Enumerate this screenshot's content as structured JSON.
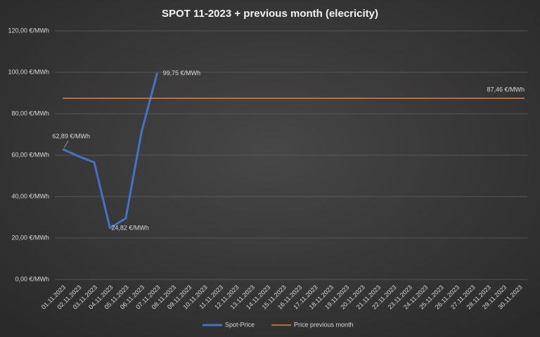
{
  "chart_data": {
    "type": "line",
    "title": "SPOT 11-2023 + previous month (elecricity)",
    "categories": [
      "01.11.2023",
      "02.11.2023",
      "03.11.2023",
      "04.11.2023",
      "05.11.2023",
      "06.11.2023",
      "07.11.2023",
      "08.11.2023",
      "09.11.2023",
      "10.11.2023",
      "11.11.2023",
      "12.11.2023",
      "13.11.2023",
      "14.11.2023",
      "15.11.2023",
      "16.11.2023",
      "17.11.2023",
      "18.11.2023",
      "19.11.2023",
      "20.11.2023",
      "21.11.2023",
      "22.11.2023",
      "23.11.2023",
      "24.11.2023",
      "25.11.2023",
      "26.11.2023",
      "27.11.2023",
      "28.11.2023",
      "29.11.2023",
      "30.11.2023"
    ],
    "series": [
      {
        "name": "Spot-Price",
        "color": "#4472c4",
        "values": [
          62.89,
          59.5,
          56.5,
          24.82,
          29.5,
          71,
          99.75,
          null,
          null,
          null,
          null,
          null,
          null,
          null,
          null,
          null,
          null,
          null,
          null,
          null,
          null,
          null,
          null,
          null,
          null,
          null,
          null,
          null,
          null,
          null
        ],
        "value_labels": [
          "62,89 €/MWh",
          null,
          null,
          "24,82 €/MWh",
          null,
          null,
          "99,75 €/MWh",
          null,
          null,
          null,
          null,
          null,
          null,
          null,
          null,
          null,
          null,
          null,
          null,
          null,
          null,
          null,
          null,
          null,
          null,
          null,
          null,
          null,
          null,
          null
        ]
      },
      {
        "name": "Price previous month",
        "color": "#ed7d31",
        "values": [
          87.46,
          87.46,
          87.46,
          87.46,
          87.46,
          87.46,
          87.46,
          87.46,
          87.46,
          87.46,
          87.46,
          87.46,
          87.46,
          87.46,
          87.46,
          87.46,
          87.46,
          87.46,
          87.46,
          87.46,
          87.46,
          87.46,
          87.46,
          87.46,
          87.46,
          87.46,
          87.46,
          87.46,
          87.46,
          87.46
        ],
        "value_labels": [
          null,
          null,
          null,
          null,
          null,
          null,
          null,
          null,
          null,
          null,
          null,
          null,
          null,
          null,
          null,
          null,
          null,
          null,
          null,
          null,
          null,
          null,
          null,
          null,
          null,
          null,
          null,
          null,
          null,
          "87,46 €/MWh"
        ]
      }
    ],
    "ylim": [
      0,
      120
    ],
    "yticks": [
      {
        "value": 0,
        "label": "0,00 €/MWh"
      },
      {
        "value": 20,
        "label": "20,00 €/MWh"
      },
      {
        "value": 40,
        "label": "40,00 €/MWh"
      },
      {
        "value": 60,
        "label": "60,00 €/MWh"
      },
      {
        "value": 80,
        "label": "80,00 €/MWh"
      },
      {
        "value": 100,
        "label": "100,00 €/MWh"
      },
      {
        "value": 120,
        "label": "120,00 €/MWh"
      }
    ],
    "grid": true,
    "legend": "bottom"
  }
}
